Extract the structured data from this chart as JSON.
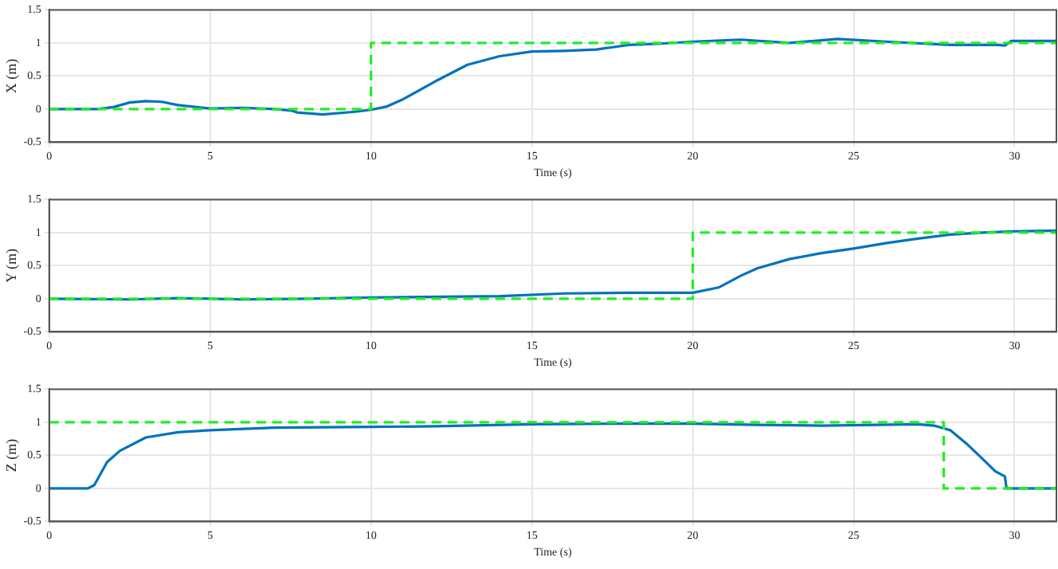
{
  "chart_data": [
    {
      "type": "line",
      "xlabel": "Time (s)",
      "ylabel": "X (m)",
      "xlim": [
        0,
        31.3
      ],
      "xticks": [
        0,
        5,
        10,
        15,
        20,
        25,
        30
      ],
      "ylim": [
        -0.5,
        1.5
      ],
      "yticks": [
        -0.5,
        0,
        0.5,
        1,
        1.5
      ],
      "grid": true,
      "legend": false,
      "series": [
        {
          "color": "#22ee22",
          "line_style": "dashed",
          "x": [
            0,
            10,
            10,
            31.3
          ],
          "values": [
            0,
            0,
            1,
            1
          ]
        },
        {
          "color": "#0072bd",
          "line_style": "solid",
          "x": [
            0,
            1.5,
            2,
            2.5,
            3,
            3.5,
            4,
            5,
            6,
            7,
            7.5,
            7.7,
            8.5,
            9.5,
            10,
            10.5,
            11,
            12,
            13,
            14,
            15,
            16,
            17,
            18,
            19,
            20,
            21.5,
            23,
            24.5,
            26,
            28,
            29.5,
            29.7,
            29.9,
            31.3
          ],
          "values": [
            0,
            0,
            0.03,
            0.1,
            0.12,
            0.11,
            0.06,
            0.01,
            0.02,
            0,
            -0.02,
            -0.05,
            -0.08,
            -0.04,
            -0.01,
            0.04,
            0.15,
            0.42,
            0.67,
            0.8,
            0.87,
            0.88,
            0.9,
            0.97,
            0.99,
            1.02,
            1.05,
            1,
            1.06,
            1.02,
            0.97,
            0.97,
            0.96,
            1.03,
            1.03
          ]
        }
      ]
    },
    {
      "type": "line",
      "xlabel": "Time (s)",
      "ylabel": "Y (m)",
      "xlim": [
        0,
        31.3
      ],
      "xticks": [
        0,
        5,
        10,
        15,
        20,
        25,
        30
      ],
      "ylim": [
        -0.5,
        1.5
      ],
      "yticks": [
        -0.5,
        0,
        0.5,
        1,
        1.5
      ],
      "grid": true,
      "legend": false,
      "series": [
        {
          "color": "#22ee22",
          "line_style": "dashed",
          "x": [
            0,
            20,
            20,
            31.3
          ],
          "values": [
            0,
            0,
            1,
            1
          ]
        },
        {
          "color": "#0072bd",
          "line_style": "solid",
          "x": [
            0,
            2.5,
            4,
            6,
            8,
            10,
            14,
            16,
            18,
            20,
            20.8,
            21.5,
            22,
            23,
            24,
            25,
            26,
            27,
            28,
            29,
            30,
            31.3
          ],
          "values": [
            0,
            -0.01,
            0.01,
            -0.01,
            0,
            0.02,
            0.04,
            0.08,
            0.09,
            0.09,
            0.17,
            0.35,
            0.46,
            0.6,
            0.69,
            0.76,
            0.84,
            0.91,
            0.97,
            1,
            1.02,
            1.03
          ]
        }
      ]
    },
    {
      "type": "line",
      "xlabel": "Time (s)",
      "ylabel": "Z (m)",
      "xlim": [
        0,
        31.3
      ],
      "xticks": [
        0,
        5,
        10,
        15,
        20,
        25,
        30
      ],
      "ylim": [
        -0.5,
        1.5
      ],
      "yticks": [
        -0.5,
        0,
        0.5,
        1,
        1.5
      ],
      "grid": true,
      "legend": false,
      "series": [
        {
          "color": "#22ee22",
          "line_style": "dashed",
          "x": [
            0,
            27.8,
            27.8,
            31.3
          ],
          "values": [
            1,
            1,
            0,
            0
          ]
        },
        {
          "color": "#0072bd",
          "line_style": "solid",
          "x": [
            0,
            1.2,
            1.4,
            1.8,
            2.2,
            3,
            4,
            5,
            7,
            10,
            12,
            15,
            18,
            20,
            22,
            24,
            27,
            27.5,
            28,
            28.5,
            29,
            29.4,
            29.7,
            29.75,
            31.3
          ],
          "values": [
            0,
            0,
            0.05,
            0.4,
            0.57,
            0.77,
            0.85,
            0.88,
            0.92,
            0.93,
            0.94,
            0.97,
            0.98,
            0.98,
            0.96,
            0.95,
            0.97,
            0.95,
            0.88,
            0.68,
            0.45,
            0.26,
            0.18,
            0,
            0
          ]
        }
      ]
    }
  ]
}
